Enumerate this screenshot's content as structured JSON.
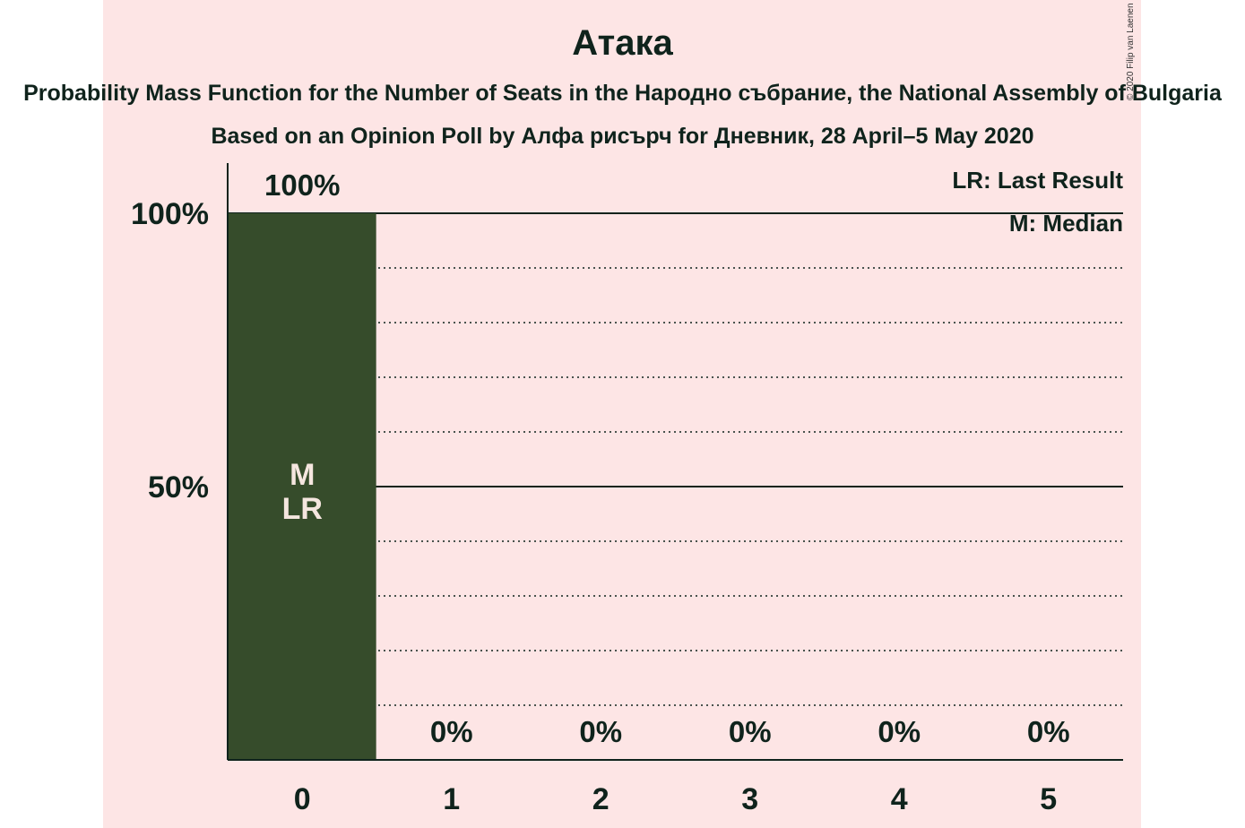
{
  "chart_data": {
    "type": "bar",
    "title": "Атака",
    "subtitle": "Probability Mass Function for the Number of Seats in the Народно събрание, the National Assembly of Bulgaria",
    "source": "Based on an Opinion Poll by Алфа рисърч for Дневник, 28 April–5 May 2020",
    "copyright": "© 2020 Filip van Laenen",
    "categories": [
      "0",
      "1",
      "2",
      "3",
      "4",
      "5"
    ],
    "values": [
      100,
      0,
      0,
      0,
      0,
      0
    ],
    "value_labels": [
      "100%",
      "0%",
      "0%",
      "0%",
      "0%",
      "0%"
    ],
    "bar_annotations": [
      [
        "M",
        "LR"
      ],
      [],
      [],
      [],
      [],
      []
    ],
    "ylim": [
      0,
      100
    ],
    "yticks": [
      50,
      100
    ],
    "ytick_labels": [
      "50%",
      "100%"
    ],
    "minor_gridlines": [
      10,
      20,
      30,
      40,
      60,
      70,
      80,
      90
    ],
    "legend": [
      "LR: Last Result",
      "M: Median"
    ],
    "legend_position": "top-right",
    "colors": {
      "bar": "#364c2b",
      "background": "#fde5e5",
      "text": "#0f231c",
      "bar_text": "#f5e6df"
    }
  }
}
